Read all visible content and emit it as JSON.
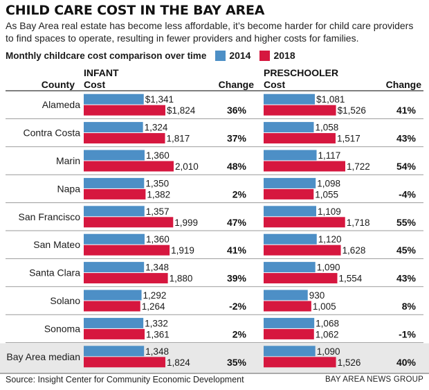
{
  "title": "CHILD CARE COST IN THE BAY AREA",
  "subtitle": "As Bay Area real estate has become less affordable, it’s become harder for child care providers to find spaces to operate, resulting in fewer providers and higher costs for families.",
  "legend": {
    "label": "Monthly childcare cost comparison over time",
    "items": [
      {
        "label": "2014",
        "color": "#4d8fc6"
      },
      {
        "label": "2018",
        "color": "#d6173f"
      }
    ]
  },
  "headers": {
    "county": "County",
    "infant_group": "INFANT",
    "infant_cost": "Cost",
    "infant_change": "Change",
    "preschooler_group": "PRESCHOOLER",
    "preschooler_cost": "Cost",
    "preschooler_change": "Change"
  },
  "chart_data": {
    "type": "bar",
    "title": "Monthly childcare cost comparison over time",
    "categories": [
      "Alameda",
      "Contra Costa",
      "Marin",
      "Napa",
      "San Francisco",
      "San Mateo",
      "Santa Clara",
      "Solano",
      "Sonoma",
      "Bay Area median"
    ],
    "highlight_category": "Bay Area median",
    "highlight_color": "#e8e8e8",
    "panels": [
      {
        "group": "INFANT",
        "series": [
          {
            "name": "2014",
            "color": "#4d8fc6",
            "values": [
              1341,
              1324,
              1360,
              1350,
              1357,
              1360,
              1348,
              1292,
              1332,
              1348
            ],
            "labels": [
              "$1,341",
              "1,324",
              "1,360",
              "1,350",
              "1,357",
              "1,360",
              "1,348",
              "1,292",
              "1,332",
              "1,348"
            ]
          },
          {
            "name": "2018",
            "color": "#d6173f",
            "values": [
              1824,
              1817,
              2010,
              1382,
              1999,
              1919,
              1880,
              1264,
              1361,
              1824
            ],
            "labels": [
              "$1,824",
              "1,817",
              "2,010",
              "1,382",
              "1,999",
              "1,919",
              "1,880",
              "1,264",
              "1,361",
              "1,824"
            ]
          }
        ],
        "change": [
          "36%",
          "37%",
          "48%",
          "2%",
          "47%",
          "41%",
          "39%",
          "-2%",
          "2%",
          "35%"
        ]
      },
      {
        "group": "PRESCHOOLER",
        "series": [
          {
            "name": "2014",
            "color": "#4d8fc6",
            "values": [
              1081,
              1058,
              1117,
              1098,
              1109,
              1120,
              1090,
              930,
              1068,
              1090
            ],
            "labels": [
              "$1,081",
              "1,058",
              "1,117",
              "1,098",
              "1,109",
              "1,120",
              "1,090",
              "930",
              "1,068",
              "1,090"
            ]
          },
          {
            "name": "2018",
            "color": "#d6173f",
            "values": [
              1526,
              1517,
              1722,
              1055,
              1718,
              1628,
              1554,
              1005,
              1062,
              1526
            ],
            "labels": [
              "$1,526",
              "1,517",
              "1,722",
              "1,055",
              "1,718",
              "1,628",
              "1,554",
              "1,005",
              "1,062",
              "1,526"
            ]
          }
        ],
        "change": [
          "41%",
          "43%",
          "54%",
          "-4%",
          "55%",
          "45%",
          "43%",
          "8%",
          "-1%",
          "40%"
        ]
      }
    ]
  },
  "footer": {
    "source": "Source: Insight Center for Community Economic Development",
    "credit": "BAY AREA NEWS GROUP"
  }
}
